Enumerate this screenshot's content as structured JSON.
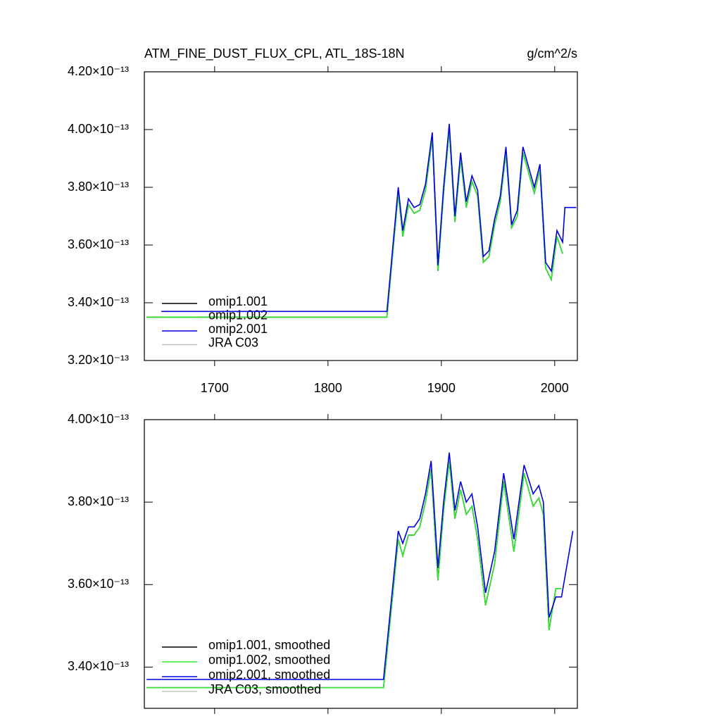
{
  "chart_data": [
    {
      "type": "line",
      "title": "ATM_FINE_DUST_FLUX_CPL, ATL_18S-18N",
      "units": "g/cm^2/s",
      "x": [
        1640,
        1653,
        1852,
        1862,
        1866,
        1871,
        1876,
        1881,
        1886,
        1892,
        1897,
        1902,
        1907,
        1912,
        1917,
        1922,
        1927,
        1932,
        1937,
        1942,
        1947,
        1952,
        1957,
        1962,
        1967,
        1972,
        1977,
        1982,
        1987,
        1992,
        1997,
        2002,
        2007,
        2009,
        2019
      ],
      "xlim": [
        1638,
        2020
      ],
      "xticks": [
        1700,
        1800,
        1900,
        2000
      ],
      "show_xtick_labels": true,
      "ylim": [
        3.2e-13,
        4.2e-13
      ],
      "yticks": [
        {
          "value": 3.2e-13,
          "label": "3.20×10⁻¹³"
        },
        {
          "value": 3.4e-13,
          "label": "3.40×10⁻¹³"
        },
        {
          "value": 3.6e-13,
          "label": "3.60×10⁻¹³"
        },
        {
          "value": 3.8e-13,
          "label": "3.80×10⁻¹³"
        },
        {
          "value": 4e-13,
          "label": "4.00×10⁻¹³"
        },
        {
          "value": 4.2e-13,
          "label": "4.20×10⁻¹³"
        }
      ],
      "legend": "bottom-left",
      "series": [
        {
          "name": "omip1.001",
          "color": "#000000",
          "values": [
            3.35e-13,
            3.35e-13,
            3.35e-13,
            3.78e-13,
            3.63e-13,
            3.74e-13,
            3.71e-13,
            3.72e-13,
            3.79e-13,
            3.97e-13,
            3.51e-13,
            3.78e-13,
            4e-13,
            3.68e-13,
            3.9e-13,
            3.73e-13,
            3.82e-13,
            3.77e-13,
            3.54e-13,
            3.56e-13,
            3.67e-13,
            3.75e-13,
            3.92e-13,
            3.66e-13,
            3.7e-13,
            3.92e-13,
            3.85e-13,
            3.78e-13,
            3.86e-13,
            3.52e-13,
            3.48e-13,
            3.63e-13,
            3.57e-13,
            null,
            null
          ]
        },
        {
          "name": "omip1.002",
          "color": "#2ee82e",
          "values": [
            3.35e-13,
            3.35e-13,
            3.35e-13,
            3.78e-13,
            3.63e-13,
            3.74e-13,
            3.71e-13,
            3.72e-13,
            3.79e-13,
            3.97e-13,
            3.51e-13,
            3.78e-13,
            4e-13,
            3.68e-13,
            3.9e-13,
            3.73e-13,
            3.82e-13,
            3.77e-13,
            3.54e-13,
            3.56e-13,
            3.67e-13,
            3.75e-13,
            3.92e-13,
            3.66e-13,
            3.7e-13,
            3.92e-13,
            3.85e-13,
            3.78e-13,
            3.86e-13,
            3.52e-13,
            3.48e-13,
            3.63e-13,
            3.57e-13,
            null,
            null
          ]
        },
        {
          "name": "omip2.001",
          "color": "#0000e0",
          "values": [
            null,
            3.37e-13,
            3.37e-13,
            3.8e-13,
            3.65e-13,
            3.76e-13,
            3.73e-13,
            3.74e-13,
            3.81e-13,
            3.99e-13,
            3.53e-13,
            3.8e-13,
            4.02e-13,
            3.7e-13,
            3.92e-13,
            3.75e-13,
            3.84e-13,
            3.79e-13,
            3.56e-13,
            3.58e-13,
            3.69e-13,
            3.77e-13,
            3.94e-13,
            3.67e-13,
            3.72e-13,
            3.94e-13,
            3.87e-13,
            3.8e-13,
            3.88e-13,
            3.54e-13,
            3.51e-13,
            3.65e-13,
            3.61e-13,
            3.73e-13,
            3.73e-13
          ]
        },
        {
          "name": "JRA C03",
          "color": "#c0c0c0"
        }
      ]
    },
    {
      "type": "line",
      "x": [
        1640,
        1849,
        1862,
        1866,
        1871,
        1876,
        1881,
        1886,
        1891,
        1897,
        1902,
        1907,
        1912,
        1917,
        1922,
        1927,
        1932,
        1939,
        1947,
        1955,
        1964,
        1973,
        1981,
        1986,
        1990,
        1995,
        2001,
        2006,
        2016
      ],
      "xlim": [
        1638,
        2020
      ],
      "xticks": [
        1700,
        1800,
        1900,
        2000
      ],
      "show_xtick_labels": false,
      "ylim": [
        3.3e-13,
        4e-13
      ],
      "yticks": [
        {
          "value": 3.4e-13,
          "label": "3.40×10⁻¹³"
        },
        {
          "value": 3.6e-13,
          "label": "3.60×10⁻¹³"
        },
        {
          "value": 3.8e-13,
          "label": "3.80×10⁻¹³"
        },
        {
          "value": 4e-13,
          "label": "4.00×10⁻¹³"
        }
      ],
      "legend": "bottom-left",
      "series": [
        {
          "name": "omip1.001, smoothed",
          "color": "#000000",
          "values": [
            3.35e-13,
            3.35e-13,
            3.71e-13,
            3.67e-13,
            3.72e-13,
            3.72e-13,
            3.74e-13,
            3.8e-13,
            3.88e-13,
            3.61e-13,
            3.78e-13,
            3.9e-13,
            3.76e-13,
            3.83e-13,
            3.77e-13,
            3.79e-13,
            3.71e-13,
            3.55e-13,
            3.65e-13,
            3.85e-13,
            3.68e-13,
            3.87e-13,
            3.79e-13,
            3.81e-13,
            3.77e-13,
            3.49e-13,
            3.59e-13,
            3.59e-13,
            null
          ]
        },
        {
          "name": "omip1.002, smoothed",
          "color": "#2ee82e",
          "values": [
            3.35e-13,
            3.35e-13,
            3.71e-13,
            3.67e-13,
            3.72e-13,
            3.72e-13,
            3.74e-13,
            3.8e-13,
            3.88e-13,
            3.61e-13,
            3.78e-13,
            3.9e-13,
            3.76e-13,
            3.83e-13,
            3.77e-13,
            3.79e-13,
            3.71e-13,
            3.55e-13,
            3.65e-13,
            3.85e-13,
            3.68e-13,
            3.87e-13,
            3.79e-13,
            3.81e-13,
            3.77e-13,
            3.49e-13,
            3.59e-13,
            3.59e-13,
            null
          ]
        },
        {
          "name": "omip2.001, smoothed",
          "color": "#0000e0",
          "values": [
            3.37e-13,
            3.37e-13,
            3.73e-13,
            3.7e-13,
            3.74e-13,
            3.74e-13,
            3.76e-13,
            3.82e-13,
            3.9e-13,
            3.64e-13,
            3.8e-13,
            3.92e-13,
            3.78e-13,
            3.85e-13,
            3.8e-13,
            3.82e-13,
            3.74e-13,
            3.58e-13,
            3.68e-13,
            3.87e-13,
            3.71e-13,
            3.89e-13,
            3.82e-13,
            3.84e-13,
            3.8e-13,
            3.52e-13,
            3.57e-13,
            3.57e-13,
            3.73e-13
          ]
        },
        {
          "name": "JRA C03, smoothed",
          "color": "#c0c0c0"
        }
      ]
    }
  ]
}
